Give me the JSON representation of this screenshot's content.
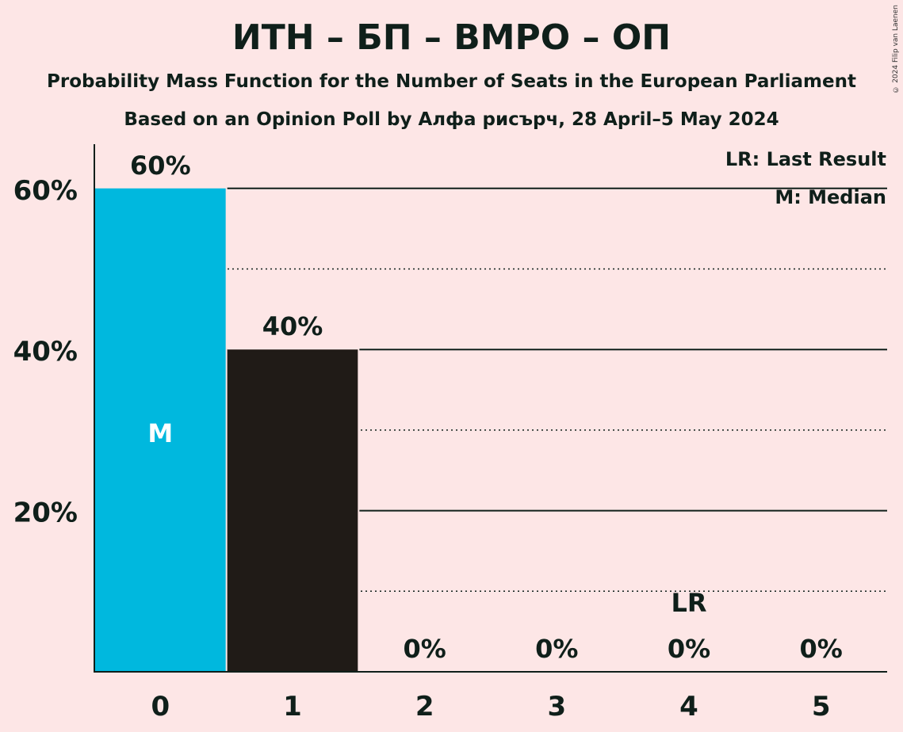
{
  "title": "ИТН – БП – ВМРО – ОП",
  "subtitle": "Probability Mass Function for the Number of Seats in the European Parliament",
  "subtitle2": "Based on an Opinion Poll by Алфа рисърч, 28 April–5 May 2024",
  "copyright": "© 2024 Filip van Laenen",
  "legend": {
    "last_result": "LR: Last Result",
    "median": "M: Median"
  },
  "colors": {
    "background": "#FDE6E6",
    "median_bar": "#00B8DE",
    "bar": "#201B17",
    "text": "#0F1F1A"
  },
  "chart_data": {
    "type": "bar",
    "categories": [
      "0",
      "1",
      "2",
      "3",
      "4",
      "5"
    ],
    "values": [
      60,
      40,
      0,
      0,
      0,
      0
    ],
    "value_labels": [
      "60%",
      "40%",
      "0%",
      "0%",
      "0%",
      "0%"
    ],
    "ylim": [
      0,
      65
    ],
    "yticks": [
      20,
      40,
      60
    ],
    "ytick_labels": [
      "20%",
      "40%",
      "60%"
    ],
    "dotted_gridlines": [
      10,
      30,
      50
    ],
    "median_index": 0,
    "median_label": "M",
    "last_result_index": 4,
    "last_result_label": "LR",
    "grid": true,
    "legend_position": "top-right"
  }
}
